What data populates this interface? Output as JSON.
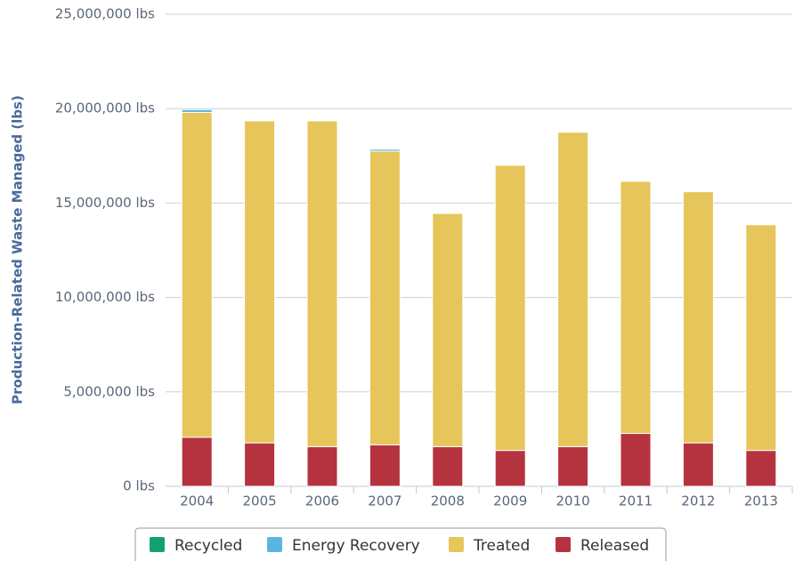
{
  "chart_data": {
    "type": "stacked-bar",
    "y_axis_label": "Production-Related Waste Managed (lbs)",
    "categories": [
      "2004",
      "2005",
      "2006",
      "2007",
      "2008",
      "2009",
      "2010",
      "2011",
      "2012",
      "2013"
    ],
    "series": [
      {
        "name": "Recycled",
        "color": "#12a173",
        "values": [
          0,
          0,
          0,
          0,
          0,
          0,
          0,
          0,
          0,
          0
        ]
      },
      {
        "name": "Energy Recovery",
        "color": "#5bb5e0",
        "values": [
          150000,
          0,
          0,
          100000,
          0,
          0,
          0,
          0,
          0,
          0
        ]
      },
      {
        "name": "Treated",
        "color": "#e6c65a",
        "values": [
          17200000,
          17050000,
          17250000,
          15550000,
          12350000,
          15100000,
          16650000,
          13350000,
          13300000,
          11950000
        ]
      },
      {
        "name": "Released",
        "color": "#b5333f",
        "values": [
          2600000,
          2300000,
          2100000,
          2200000,
          2100000,
          1900000,
          2100000,
          2800000,
          2300000,
          1900000
        ]
      }
    ],
    "ylim": [
      0,
      25000000
    ],
    "yticks": [
      {
        "value": 0,
        "label": "0 lbs"
      },
      {
        "value": 5000000,
        "label": "5,000,000 lbs"
      },
      {
        "value": 10000000,
        "label": "10,000,000 lbs"
      },
      {
        "value": 15000000,
        "label": "15,000,000 lbs"
      },
      {
        "value": 20000000,
        "label": "20,000,000 lbs"
      },
      {
        "value": 25000000,
        "label": "25,000,000 lbs"
      }
    ],
    "grid": true,
    "legend_position": "bottom"
  }
}
